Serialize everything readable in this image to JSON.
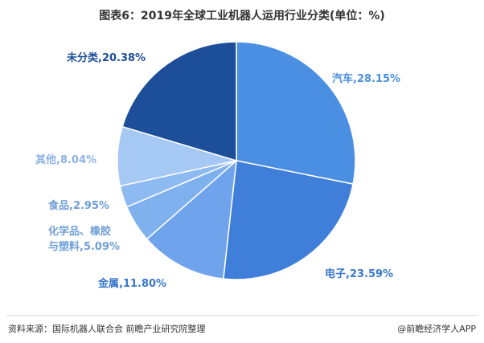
{
  "chart_data": {
    "type": "pie",
    "title": "图表6：2019年全球工业机器人运用行业分类(单位：%)",
    "unit": "%",
    "slices": [
      {
        "label": "汽车",
        "value": 28.15,
        "color": "#4a8fe2",
        "label_color": "#4a90e0",
        "label_text": "汽车,28.15%"
      },
      {
        "label": "电子",
        "value": 23.59,
        "color": "#3f7fd9",
        "label_color": "#3a78cc",
        "label_text": "电子,23.59%"
      },
      {
        "label": "金属",
        "value": 11.8,
        "color": "#6fa3ec",
        "label_color": "#3a78cc",
        "label_text": "金属,11.80%"
      },
      {
        "label": "化学品、橡胶与塑料",
        "value": 5.09,
        "color": "#7fb1ef",
        "label_color": "#6f9fd8",
        "label_text": [
          "化学品、橡胶",
          "与塑料,5.09%"
        ]
      },
      {
        "label": "食品",
        "value": 2.95,
        "color": "#8dbaf1",
        "label_color": "#6f9fd8",
        "label_text": "食品,2.95%"
      },
      {
        "label": "其他",
        "value": 8.04,
        "color": "#a6c8f4",
        "label_color": "#8ab2e4",
        "label_text": "其他,8.04%"
      },
      {
        "label": "未分类",
        "value": 20.38,
        "color": "#1c4e99",
        "label_color": "#1c4e99",
        "label_text": "未分类,20.38%"
      }
    ],
    "legend": "none"
  },
  "footer": {
    "source": "资料来源：国际机器人联合会  前瞻产业研究院整理",
    "brand": "@前瞻经济学人APP"
  }
}
